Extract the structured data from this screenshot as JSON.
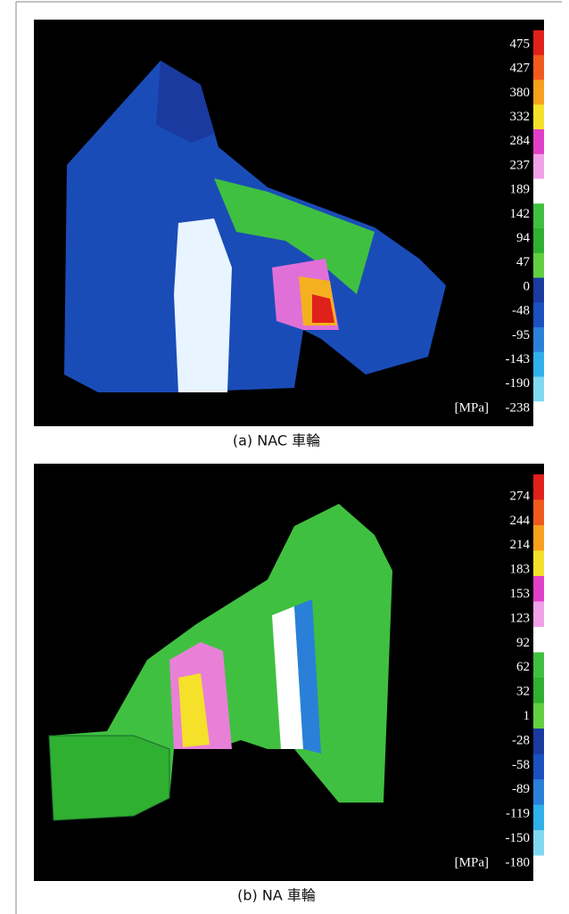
{
  "panels": [
    {
      "labels": [
        475,
        427,
        380,
        332,
        284,
        237,
        189,
        142,
        94,
        47,
        0,
        -48,
        -95,
        -143,
        -190,
        -238
      ],
      "unit": "[MPa]",
      "caption": "(a) NAC 車輪",
      "colorbar": [
        "#e0201a",
        "#f05a1e",
        "#f7a01e",
        "#f5e02a",
        "#e040c8",
        "#f0a0e8",
        "#ffffff",
        "#40c040",
        "#30b030",
        "#60d040",
        "#1a3aa0",
        "#1a50c0",
        "#2a80d8",
        "#30b0e8",
        "#80d8f0",
        "#ffffff"
      ]
    },
    {
      "labels": [
        274,
        244,
        214,
        183,
        153,
        123,
        92,
        62,
        32,
        1,
        -28,
        -58,
        -89,
        -119,
        -150,
        -180
      ],
      "unit": "[MPa]",
      "caption": "(b) NA 車輪",
      "colorbar": [
        "#e0201a",
        "#f05a1e",
        "#f7a01e",
        "#f5e02a",
        "#e040c8",
        "#f0a0e8",
        "#ffffff",
        "#40c040",
        "#30b030",
        "#60d040",
        "#1a3aa0",
        "#1a50c0",
        "#2a80d8",
        "#30b0e8",
        "#80d8f0",
        "#ffffff"
      ]
    }
  ]
}
